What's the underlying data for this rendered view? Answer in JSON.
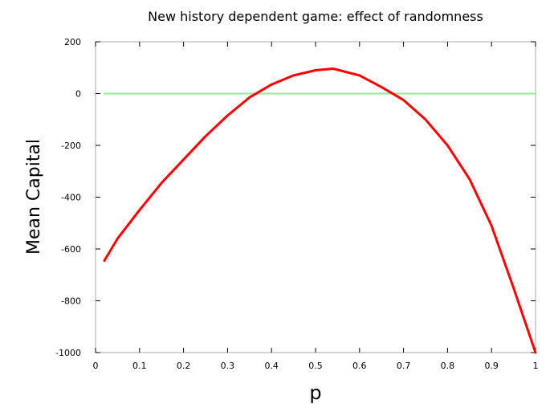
{
  "chart_data": {
    "type": "line",
    "title": "New history dependent game: effect of randomness",
    "xlabel": "p",
    "ylabel": "Mean Capital",
    "xlim": [
      0,
      1
    ],
    "ylim": [
      -1000,
      200
    ],
    "x_ticks": [
      "0",
      "0.1",
      "0.2",
      "0.3",
      "0.4",
      "0.5",
      "0.6",
      "0.7",
      "0.8",
      "0.9",
      "1"
    ],
    "y_ticks": [
      "200",
      "0",
      "-200",
      "-400",
      "-600",
      "-800",
      "-1000"
    ],
    "grid": false,
    "legend": "none",
    "series": [
      {
        "color": "#ff0000",
        "x": [
          0.02,
          0.05,
          0.1,
          0.15,
          0.2,
          0.25,
          0.3,
          0.35,
          0.4,
          0.45,
          0.5,
          0.54,
          0.6,
          0.65,
          0.7,
          0.75,
          0.8,
          0.85,
          0.9,
          0.95,
          1.0
        ],
        "y": [
          -645,
          -560,
          -450,
          -345,
          -255,
          -165,
          -85,
          -15,
          35,
          70,
          90,
          96,
          70,
          25,
          -25,
          -100,
          -200,
          -330,
          -510,
          -750,
          -1000
        ]
      },
      {
        "color": "#90ee90",
        "x": [
          0.02,
          1.0
        ],
        "y": [
          0,
          0
        ]
      }
    ]
  }
}
